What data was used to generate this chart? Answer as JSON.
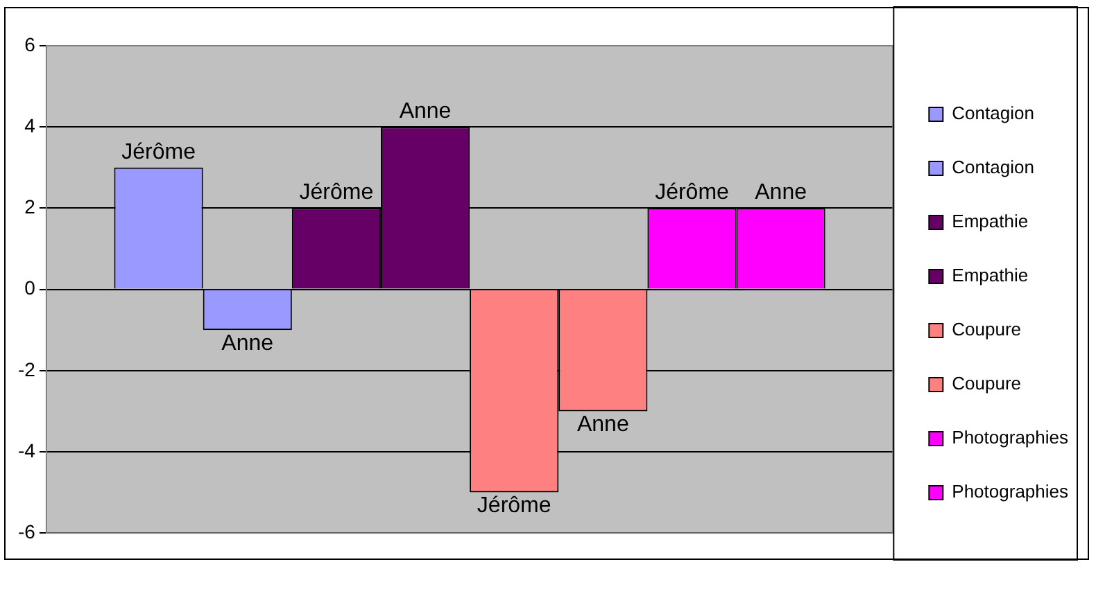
{
  "chart_data": {
    "type": "bar",
    "categories": [
      null
    ],
    "series": [
      {
        "name": "Contagion",
        "color": "#9999ff",
        "values": [
          3
        ],
        "value_labels": [
          "Jérôme"
        ]
      },
      {
        "name": "Contagion",
        "color": "#9999ff",
        "values": [
          -1
        ],
        "value_labels": [
          "Anne"
        ]
      },
      {
        "name": "Empathie",
        "color": "#660066",
        "values": [
          2
        ],
        "value_labels": [
          "Jérôme"
        ]
      },
      {
        "name": "Empathie",
        "color": "#660066",
        "values": [
          4
        ],
        "value_labels": [
          "Anne"
        ]
      },
      {
        "name": "Coupure",
        "color": "#ff8080",
        "values": [
          -5
        ],
        "value_labels": [
          "Jérôme"
        ]
      },
      {
        "name": "Coupure",
        "color": "#ff8080",
        "values": [
          -3
        ],
        "value_labels": [
          "Anne"
        ]
      },
      {
        "name": "Photographies",
        "color": "#ff00ff",
        "values": [
          2
        ],
        "value_labels": [
          "Jérôme"
        ]
      },
      {
        "name": "Photographies",
        "color": "#ff00ff",
        "values": [
          2
        ],
        "value_labels": [
          "Anne"
        ]
      }
    ],
    "ylim": [
      -6,
      6
    ],
    "yticks": [
      -6,
      -4,
      -2,
      0,
      2,
      4,
      6
    ],
    "grid": "y",
    "legend": "right"
  }
}
